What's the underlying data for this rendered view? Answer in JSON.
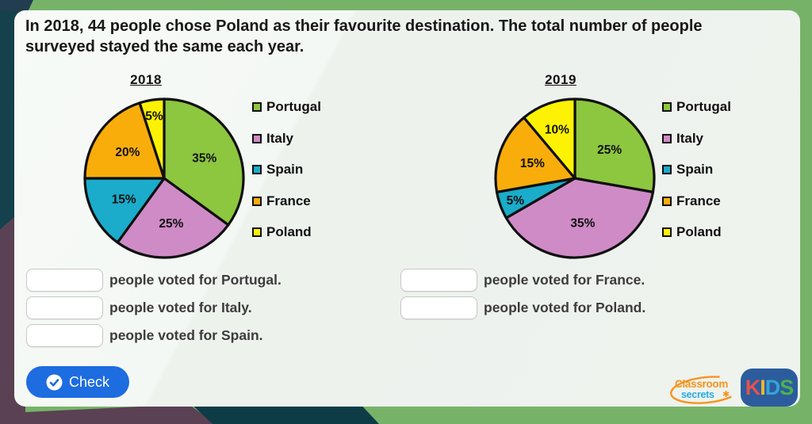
{
  "header": {
    "text": "In 2018, 44 people chose Poland as their favourite destination. The total number of people surveyed stayed the same each year."
  },
  "chart_data": [
    {
      "type": "pie",
      "title": "2018",
      "labels": [
        "Portugal",
        "Italy",
        "Spain",
        "France",
        "Poland"
      ],
      "values": [
        35,
        25,
        15,
        20,
        5
      ],
      "value_labels": [
        "35%",
        "25%",
        "15%",
        "20%",
        "5%"
      ],
      "colors": [
        "#8dc63f",
        "#cf8bc6",
        "#1aacca",
        "#f9ad0b",
        "#fdf203"
      ],
      "start_angle_deg": 0,
      "direction": "clockwise",
      "legend_position": "right",
      "outline_color": "#101010"
    },
    {
      "type": "pie",
      "title": "2019",
      "labels": [
        "Portugal",
        "Italy",
        "Spain",
        "France",
        "Poland"
      ],
      "values": [
        25,
        35,
        5,
        15,
        10
      ],
      "value_labels": [
        "25%",
        "35%",
        "5%",
        "15%",
        "10%"
      ],
      "colors": [
        "#8dc63f",
        "#cf8bc6",
        "#1aacca",
        "#f9ad0b",
        "#fdf203"
      ],
      "start_angle_deg": 0,
      "direction": "clockwise",
      "legend_position": "right",
      "outline_color": "#101010"
    }
  ],
  "answers": {
    "left": [
      {
        "key": "portugal",
        "label": "people voted for Portugal.",
        "value": ""
      },
      {
        "key": "italy",
        "label": "people voted for Italy.",
        "value": ""
      },
      {
        "key": "spain",
        "label": "people voted for Spain.",
        "value": ""
      }
    ],
    "right": [
      {
        "key": "france",
        "label": "people voted for France.",
        "value": ""
      },
      {
        "key": "poland",
        "label": "people voted for Poland.",
        "value": ""
      }
    ]
  },
  "check_button": {
    "label": "Check",
    "color": "#1d6ce0"
  },
  "logos": {
    "classroom_secrets": {
      "line1": "Classroom",
      "line2": "secrets",
      "accent": "#f7941e",
      "secondary": "#29abe2"
    },
    "kids": {
      "letters": [
        "K",
        "I",
        "D",
        "S"
      ],
      "letter_colors": [
        "#e8514b",
        "#f2b52d",
        "#35a3d9",
        "#4cb24c"
      ],
      "background": "#2c5c9d"
    }
  },
  "backdrop_colors": {
    "frame_green": "#76b369",
    "navy_corner": "#223c50",
    "teal_ribbon": "#14414c",
    "purple_ribbon": "#5a4153",
    "bottom_teal": "#0e3c46"
  }
}
